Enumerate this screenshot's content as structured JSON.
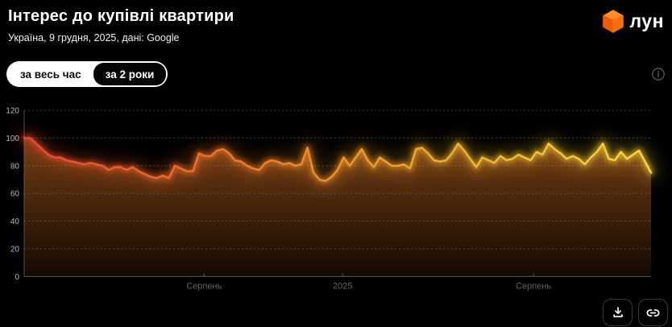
{
  "header": {
    "title": "Інтерес до купівлі квартири",
    "subtitle": "Україна, 9 грудня, 2025, дані: Google",
    "logo_text": "лун",
    "logo_colors": {
      "cube_top": "#ff8c28",
      "cube_left": "#ef5d08",
      "cube_right": "#fa6c0e"
    }
  },
  "controls": {
    "range_toggle": [
      {
        "label": "за весь час",
        "selected": false
      },
      {
        "label": "за 2 роки",
        "selected": true
      }
    ],
    "info_icon": "info-icon",
    "info_icon_color": "#575d66"
  },
  "chart_data": {
    "type": "line",
    "title": "Інтерес до купівлі квартири",
    "ylim": [
      0,
      120
    ],
    "y_ticks": [
      0,
      20,
      40,
      60,
      80,
      100,
      120
    ],
    "x_tick_labels": [
      {
        "label": "Серпень",
        "pos": 0.287
      },
      {
        "label": "2025",
        "pos": 0.508
      },
      {
        "label": "Серпень",
        "pos": 0.8125
      }
    ],
    "grid": "dashed",
    "legend": "none",
    "values": [
      100,
      100,
      96,
      92,
      88,
      86,
      86,
      84,
      83,
      82,
      81,
      82,
      81,
      80,
      77,
      79,
      79,
      77,
      79,
      76,
      74,
      72,
      71,
      73,
      71,
      80,
      78,
      76,
      76,
      89,
      87,
      87,
      91,
      92,
      89,
      84,
      83,
      80,
      78,
      77,
      82,
      84,
      83,
      81,
      82,
      80,
      81,
      93,
      75,
      70,
      69,
      72,
      77,
      86,
      80,
      86,
      92,
      84,
      79,
      86,
      83,
      80,
      80,
      81,
      78,
      92,
      93,
      89,
      84,
      83,
      84,
      89,
      96,
      91,
      85,
      79,
      86,
      84,
      82,
      87,
      84,
      85,
      88,
      86,
      84,
      90,
      88,
      96,
      92,
      89,
      85,
      87,
      85,
      81,
      86,
      90,
      96,
      85,
      84,
      90,
      85,
      88,
      91,
      83,
      75
    ],
    "line_gradient": [
      "#f0472e",
      "#f07c28",
      "#f2b42e",
      "#ffd83f"
    ],
    "line_gradient_offsets": [
      0,
      0.35,
      0.7,
      1
    ],
    "area_color": "#f07c24",
    "grid_color": "#3a4048",
    "axis_color": "#50565e",
    "y_label_color": "#b4b8bf",
    "x_label_color": "#5b6270",
    "background": "#000000"
  },
  "footer": {
    "download_icon": "download-icon",
    "link_icon": "link-icon"
  }
}
